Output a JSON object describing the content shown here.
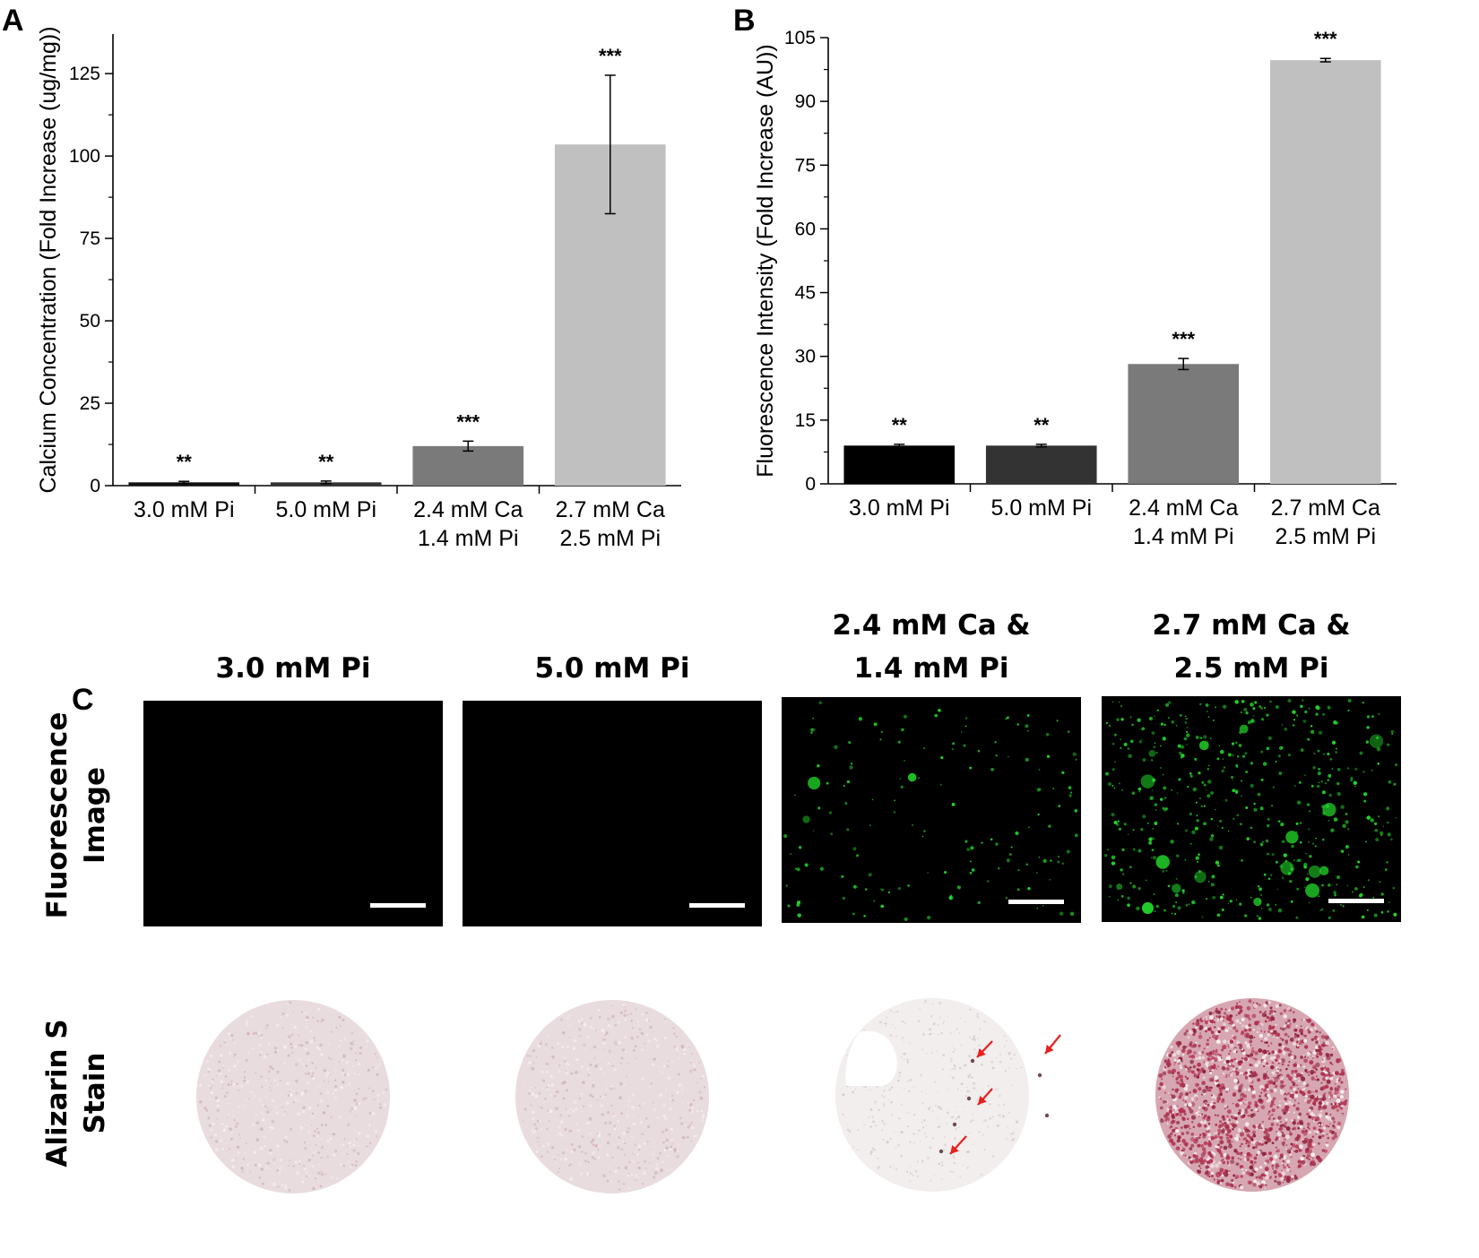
{
  "panels": {
    "a_label": "A",
    "b_label": "B",
    "c_label": "C"
  },
  "chart_data": [
    {
      "type": "bar",
      "panel": "A",
      "categories": [
        [
          "3.0 mM Pi"
        ],
        [
          "5.0 mM Pi"
        ],
        [
          "2.4 mM Ca",
          "1.4 mM Pi"
        ],
        [
          "2.7 mM Ca",
          "2.5 mM Pi"
        ]
      ],
      "values": [
        1,
        1,
        12,
        103.5
      ],
      "errors": [
        0.3,
        0.4,
        1.5,
        21
      ],
      "significance": [
        "**",
        "**",
        "***",
        "***"
      ],
      "colors": [
        "#111111",
        "#333333",
        "#7a7a7a",
        "#c0c0c0"
      ],
      "ylabel": "Calcium Concentration (Fold Increase (ug/mg))",
      "ylim": [
        0,
        137
      ],
      "yticks": [
        0,
        25,
        50,
        75,
        100,
        125
      ]
    },
    {
      "type": "bar",
      "panel": "B",
      "categories": [
        [
          "3.0 mM Pi"
        ],
        [
          "5.0 mM Pi"
        ],
        [
          "2.4 mM Ca",
          "1.4 mM Pi"
        ],
        [
          "2.7 mM Ca",
          "2.5 mM Pi"
        ]
      ],
      "values": [
        9,
        9,
        28.2,
        99.7
      ],
      "errors": [
        0.3,
        0.3,
        1.3,
        0.4
      ],
      "significance": [
        "**",
        "**",
        "***",
        "***"
      ],
      "colors": [
        "#000000",
        "#333333",
        "#7a7a7a",
        "#c0c0c0"
      ],
      "ylabel": "Fluorescence Intensity (Fold Increase (AU))",
      "ylim": [
        0,
        105
      ],
      "yticks": [
        0,
        15,
        30,
        45,
        60,
        75,
        90,
        105
      ]
    }
  ],
  "images": {
    "column_titles": [
      [
        "3.0 mM Pi"
      ],
      [
        "5.0 mM Pi"
      ],
      [
        "2.4 mM Ca &",
        "1.4 mM Pi"
      ],
      [
        "2.7 mM Ca &",
        "2.5 mM Pi"
      ]
    ],
    "row_titles": [
      [
        "Fluorescence",
        "Image"
      ],
      [
        "Alizarin S",
        "Stain"
      ]
    ],
    "fluorescence_level": [
      0,
      0,
      0.3,
      1
    ],
    "stain_intensity": [
      0.15,
      0.15,
      0.05,
      0.85
    ],
    "fluorescence_bg": "#000000",
    "fluorescence_particle": "#22d52a",
    "stain_base": "#e9dcde",
    "stain_particle": "#b23a55",
    "arrow_color": "#e8201f"
  }
}
